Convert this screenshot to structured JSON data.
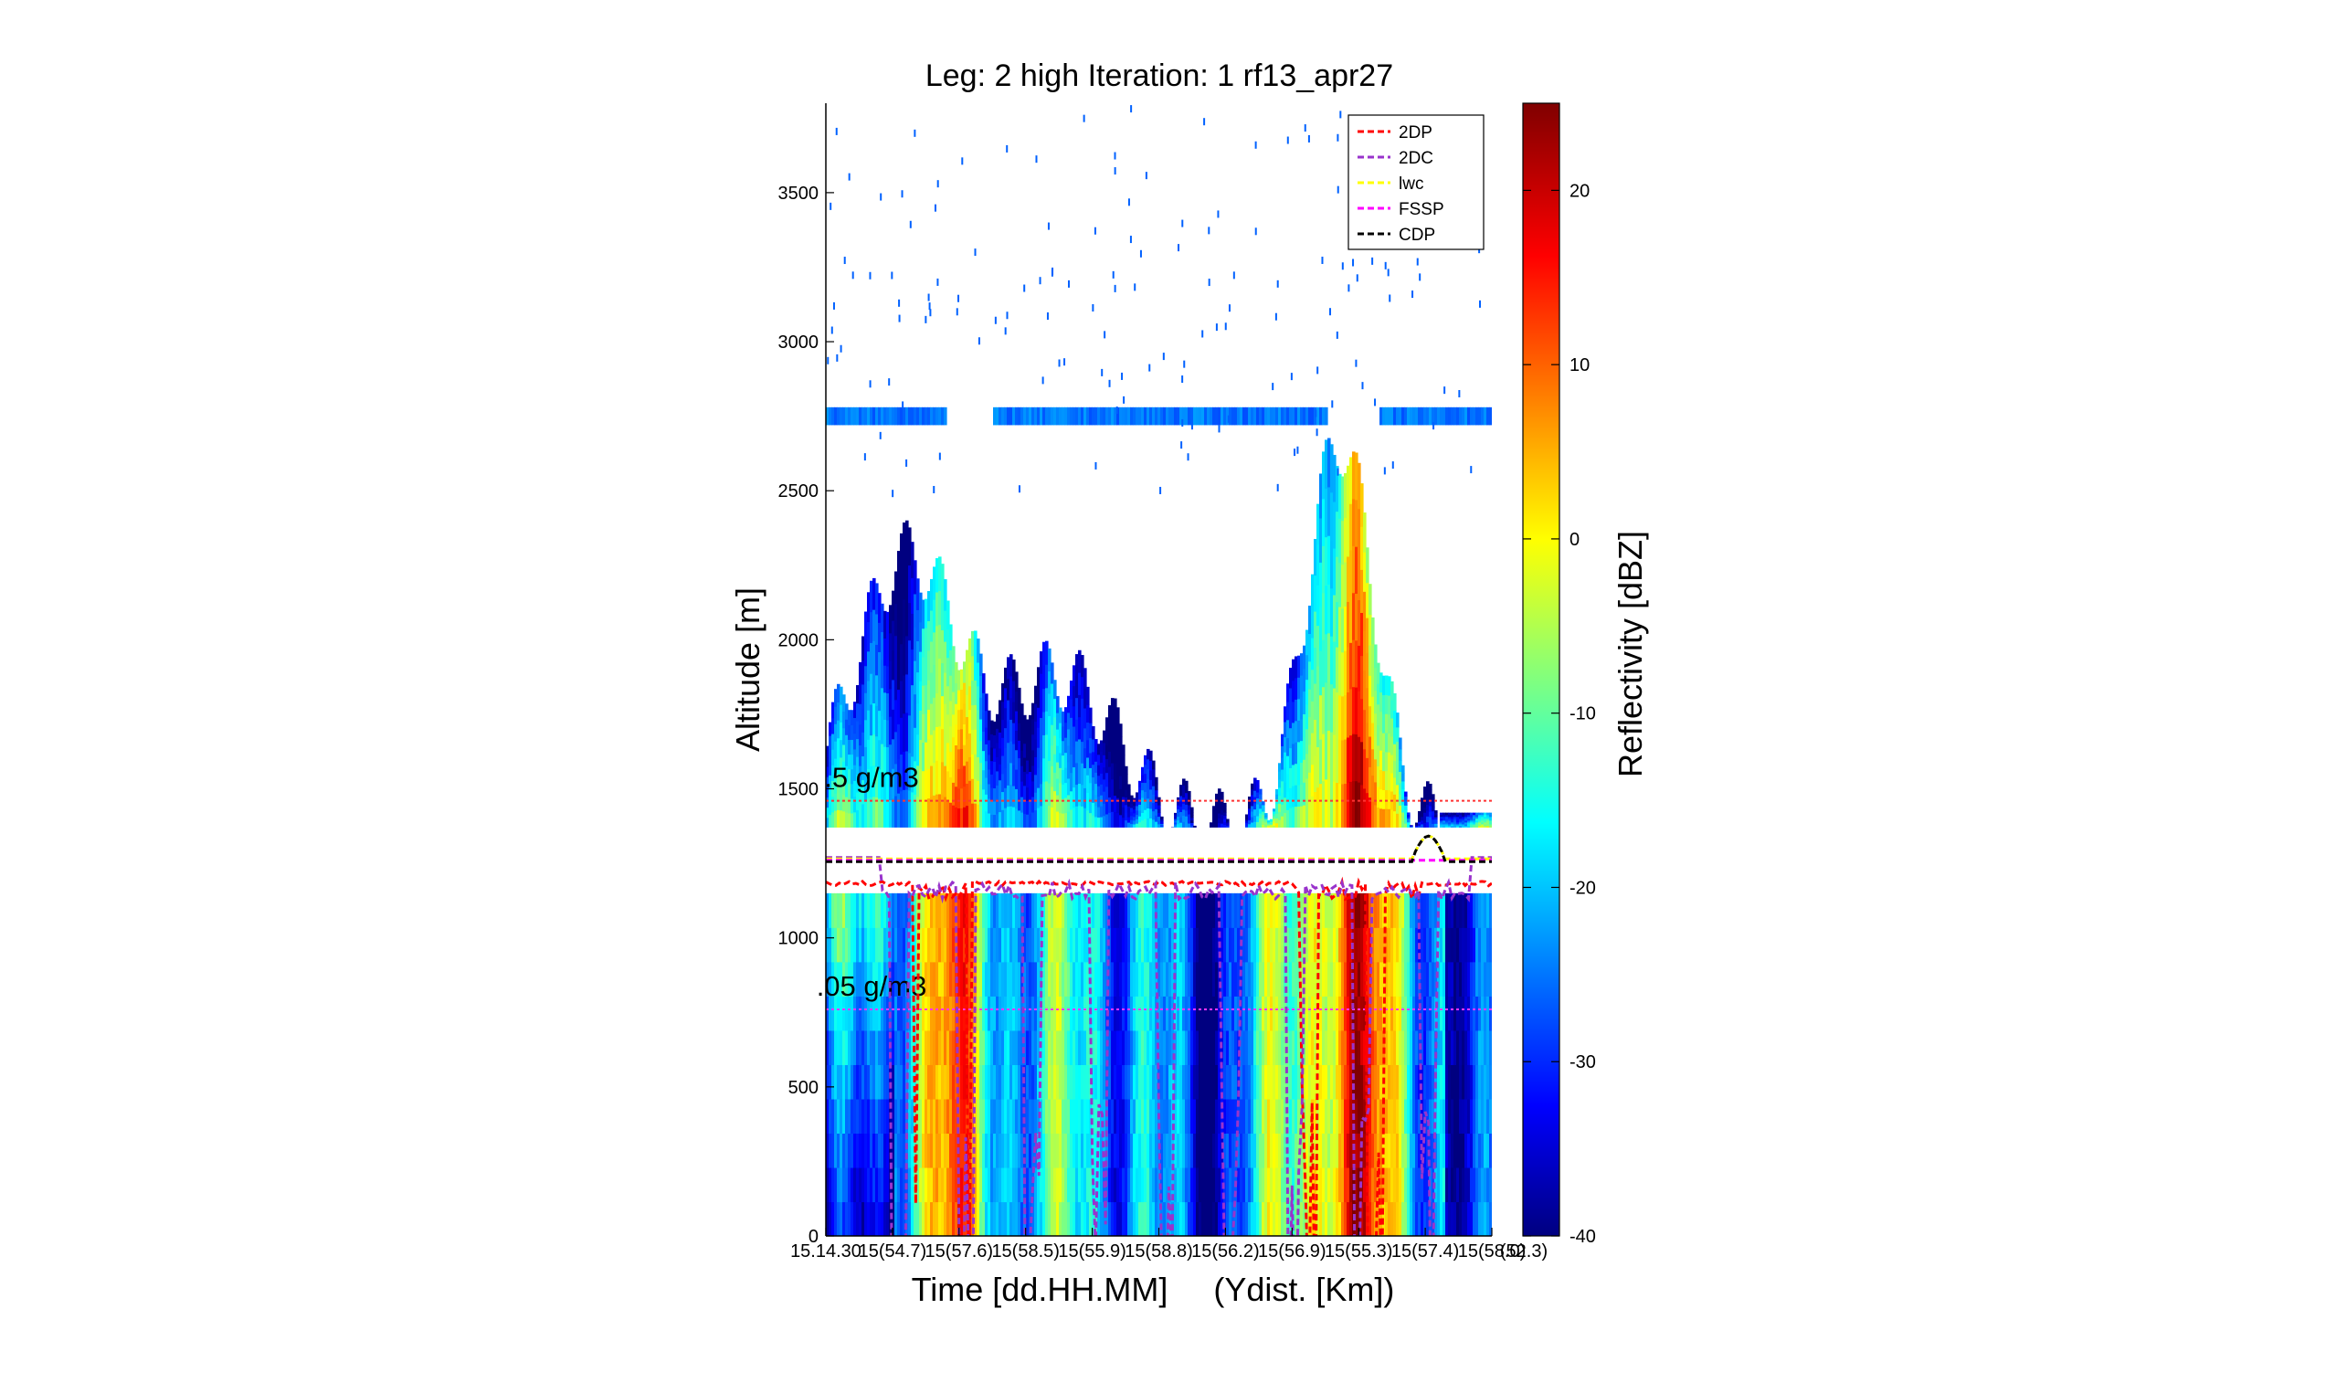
{
  "chart_data": [
    {
      "type": "heatmap",
      "title": "Leg: 2 high Iteration: 1  rf13_apr27",
      "xlabel": "Time [dd.HH.MM]     (Ydist. [Km])",
      "ylabel": "Altitude [m]",
      "ylim": [
        0,
        3800
      ],
      "yticks": [
        0,
        500,
        1000,
        1500,
        2000,
        2500,
        3000,
        3500
      ],
      "xtick_labels": [
        "15.14.30",
        "15(54.7)",
        "15(57.6)",
        "15(58.5)",
        "15(55.9)",
        "15(58.8)",
        "15(56.2)",
        "15(56.9)",
        "15(55.3)",
        "15(57.4)",
        "15(58.0)",
        "(52.3)"
      ],
      "grid": false,
      "legend_position": "top-right",
      "colorscale": "jet",
      "aircraft_gap_altitude_range": [
        1150,
        1370
      ],
      "aircraft_track_altitude": 1265,
      "echo_features": [
        {
          "name": "cloud-left",
          "bottom": 1370,
          "top_max": 2420
        },
        {
          "name": "cloud-right",
          "bottom": 1370,
          "top_max": 2780
        },
        {
          "name": "precip-left",
          "bottom": 0,
          "top": 1150
        },
        {
          "name": "precip-right",
          "bottom": 0,
          "top": 1150
        }
      ],
      "horizontal_bands": [
        {
          "name": "upper-layer-echo",
          "altitude": 2750
        }
      ],
      "series": [
        {
          "name": "2DP",
          "color": "#ff0000",
          "line_style": "dashed"
        },
        {
          "name": "2DC",
          "color": "#9933cc",
          "line_style": "dashed"
        },
        {
          "name": "lwc",
          "color": "#ffff00",
          "line_style": "dashed"
        },
        {
          "name": "FSSP",
          "color": "#ff00ff",
          "line_style": "dashed"
        },
        {
          "name": "CDP",
          "color": "#000000",
          "line_style": "dashed"
        }
      ],
      "reference_lines": [
        {
          "label": ".5 g/m3",
          "altitude": 1460,
          "color": "#ff3333"
        },
        {
          "label": ".05 g/m3",
          "altitude": 760,
          "color": "#ff33ff"
        }
      ]
    },
    {
      "type": "colorbar",
      "label": "Reflectivity [dBZ]",
      "range": [
        -40,
        25
      ],
      "ticks": [
        -40,
        -30,
        -20,
        -10,
        0,
        10,
        20
      ]
    }
  ]
}
